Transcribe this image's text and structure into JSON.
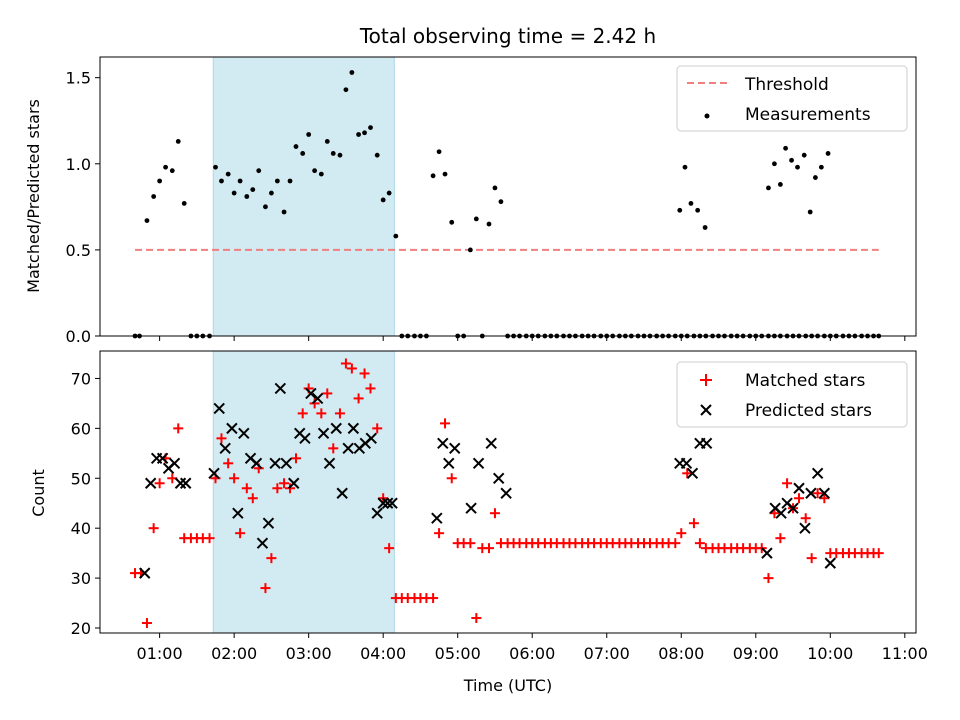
{
  "figure": {
    "title": "Total observing time = 2.42 h",
    "xlabel": "Time (UTC)",
    "xticks": [
      "01:00",
      "02:00",
      "03:00",
      "04:00",
      "05:00",
      "06:00",
      "07:00",
      "08:00",
      "09:00",
      "10:00",
      "11:00"
    ],
    "xlim_hours": [
      0.2,
      11.15
    ],
    "shaded_span_hours": [
      1.72,
      4.15
    ],
    "shade_color": "#add8e6"
  },
  "chart_data": [
    {
      "type": "scatter",
      "ylabel": "Matched/Predicted stars",
      "ylim": [
        0,
        1.62
      ],
      "yticks": [
        "0.0",
        "0.5",
        "1.0",
        "1.5"
      ],
      "legend_position": "upper right",
      "legend": [
        "Threshold",
        "Measurements"
      ],
      "threshold": {
        "name": "Threshold",
        "value": 0.5,
        "x_range": [
          0.67,
          10.65
        ],
        "color": "#f08080",
        "style": "dashed"
      },
      "series": [
        {
          "name": "Measurements",
          "color": "#000000",
          "x": [
            0.67,
            0.73,
            0.83,
            0.92,
            1.0,
            1.08,
            1.17,
            1.25,
            1.33,
            1.42,
            1.5,
            1.58,
            1.67,
            1.75,
            1.83,
            1.92,
            2.0,
            2.08,
            2.17,
            2.25,
            2.33,
            2.42,
            2.5,
            2.58,
            2.67,
            2.75,
            2.83,
            2.92,
            3.0,
            3.08,
            3.17,
            3.25,
            3.33,
            3.42,
            3.5,
            3.58,
            3.67,
            3.75,
            3.83,
            3.92,
            4.0,
            4.08,
            4.17,
            4.25,
            4.33,
            4.42,
            4.5,
            4.58,
            4.67,
            4.75,
            4.83,
            4.92,
            5.0,
            5.08,
            5.17,
            5.25,
            5.33,
            5.42,
            5.5,
            5.58,
            5.67,
            5.75,
            5.83,
            5.92,
            6.0,
            6.08,
            6.17,
            6.25,
            6.33,
            6.42,
            6.5,
            6.58,
            6.67,
            6.75,
            6.83,
            6.92,
            7.0,
            7.08,
            7.17,
            7.25,
            7.33,
            7.42,
            7.5,
            7.58,
            7.67,
            7.75,
            7.83,
            7.92,
            8.0,
            8.08,
            8.17,
            8.25,
            8.33,
            8.42,
            8.5,
            8.58,
            8.67,
            8.75,
            8.83,
            8.92,
            9.0,
            9.08,
            9.17,
            9.25,
            9.33,
            9.42,
            9.5,
            9.58,
            9.67,
            9.75,
            9.83,
            9.92,
            10.0,
            10.08,
            10.17,
            10.25,
            10.33,
            10.42,
            10.5,
            10.58,
            10.65
          ],
          "y": [
            0.0,
            0.0,
            0.67,
            0.81,
            0.9,
            0.98,
            0.96,
            1.13,
            0.77,
            0.0,
            0.0,
            0.0,
            0.0,
            0.98,
            0.9,
            0.94,
            0.83,
            0.9,
            0.81,
            0.85,
            0.96,
            0.75,
            0.83,
            0.9,
            0.72,
            0.9,
            1.1,
            1.06,
            1.17,
            0.96,
            0.94,
            1.13,
            1.06,
            1.05,
            1.43,
            1.53,
            1.17,
            1.18,
            1.21,
            1.05,
            0.79,
            0.83,
            0.58,
            0.0,
            0.0,
            0.0,
            0.0,
            0.0,
            0.93,
            1.07,
            0.94,
            0.66,
            0.0,
            0.0,
            0.5,
            0.68,
            0.0,
            0.65,
            0.86,
            0.78,
            0.0,
            0.0,
            0.0,
            0.0,
            0.0,
            0.0,
            0.0,
            0.0,
            0.0,
            0.0,
            0.0,
            0.0,
            0.0,
            0.0,
            0.0,
            0.0,
            0.0,
            0.0,
            0.0,
            0.0,
            0.0,
            0.0,
            0.0,
            0.0,
            0.0,
            0.0,
            0.0,
            0.0,
            0.0,
            0.0,
            0.0,
            0.0,
            0.0,
            0.0,
            0.0,
            0.0,
            0.0,
            0.0,
            0.0,
            0.0,
            0.0,
            0.0,
            0.0,
            0.0,
            0.0,
            0.0,
            0.0,
            0.0,
            0.0,
            0.0,
            0.0,
            0.0,
            0.0,
            0.0,
            0.0,
            0.0,
            0.0,
            0.0,
            0.0,
            0.0,
            0.0
          ]
        }
      ],
      "extra_measurements": {
        "x": [
          7.98,
          8.05,
          8.13,
          8.22,
          8.32,
          9.17,
          9.25,
          9.33,
          9.4,
          9.48,
          9.56,
          9.65,
          9.73,
          9.8,
          9.88,
          9.97
        ],
        "y": [
          0.73,
          0.98,
          0.77,
          0.73,
          0.63,
          0.86,
          1.0,
          0.88,
          1.09,
          1.02,
          0.98,
          1.05,
          0.72,
          0.92,
          0.98,
          1.06
        ]
      }
    },
    {
      "type": "scatter",
      "ylabel": "Count",
      "ylim": [
        19,
        75.5
      ],
      "yticks": [
        "20",
        "30",
        "40",
        "50",
        "60",
        "70"
      ],
      "legend_position": "upper right",
      "legend": [
        "Matched stars",
        "Predicted stars"
      ],
      "series": [
        {
          "name": "Matched stars",
          "color": "#ff0000",
          "marker": "+",
          "x": [
            0.67,
            0.75,
            0.83,
            0.92,
            1.0,
            1.08,
            1.17,
            1.25,
            1.33,
            1.42,
            1.5,
            1.58,
            1.67,
            1.75,
            1.83,
            1.92,
            2.0,
            2.08,
            2.17,
            2.25,
            2.33,
            2.42,
            2.5,
            2.58,
            2.67,
            2.75,
            2.83,
            2.92,
            3.0,
            3.08,
            3.17,
            3.25,
            3.33,
            3.42,
            3.5,
            3.58,
            3.67,
            3.75,
            3.83,
            3.92,
            4.0,
            4.08,
            4.17,
            4.25,
            4.33,
            4.42,
            4.5,
            4.58,
            4.67,
            4.75,
            4.83,
            4.92,
            5.0,
            5.08,
            5.17,
            5.25,
            5.33,
            5.42,
            5.5,
            5.58,
            5.67,
            5.75,
            5.83,
            5.92,
            6.0,
            6.08,
            6.17,
            6.25,
            6.33,
            6.42,
            6.5,
            6.58,
            6.67,
            6.75,
            6.83,
            6.92,
            7.0,
            7.08,
            7.17,
            7.25,
            7.33,
            7.42,
            7.5,
            7.58,
            7.67,
            7.75,
            7.83,
            7.92,
            8.0,
            8.08,
            8.17,
            8.25,
            8.33,
            8.42,
            8.5,
            8.58,
            8.67,
            8.75,
            8.83,
            8.92,
            9.0,
            9.08,
            9.17,
            9.25,
            9.33,
            9.42,
            9.5,
            9.58,
            9.67,
            9.75,
            9.83,
            9.92,
            10.0,
            10.08,
            10.17,
            10.25,
            10.33,
            10.42,
            10.5,
            10.58,
            10.65
          ],
          "y": [
            31,
            31,
            21,
            40,
            49,
            54,
            50,
            60,
            38,
            38,
            38,
            38,
            38,
            50,
            58,
            53,
            50,
            39,
            48,
            46,
            52,
            28,
            34,
            48,
            49,
            48,
            54,
            63,
            68,
            65,
            63,
            67,
            56,
            63,
            73,
            72,
            66,
            71,
            68,
            60,
            46,
            36,
            26,
            26,
            26,
            26,
            26,
            26,
            26,
            39,
            61,
            50,
            37,
            37,
            37,
            22,
            36,
            36,
            43,
            37,
            37,
            37,
            37,
            37,
            37,
            37,
            37,
            37,
            37,
            37,
            37,
            37,
            37,
            37,
            37,
            37,
            37,
            37,
            37,
            37,
            37,
            37,
            37,
            37,
            37,
            37,
            37,
            37,
            39,
            51,
            41,
            37,
            36,
            36,
            36,
            36,
            36,
            36,
            36,
            36,
            36,
            36,
            30,
            43,
            38,
            49,
            44,
            46,
            42,
            34,
            47,
            46,
            35,
            35,
            35,
            35,
            35,
            35,
            35,
            35,
            35
          ]
        },
        {
          "name": "Predicted stars",
          "color": "#000000",
          "marker": "x",
          "x": [
            0.8,
            0.88,
            0.96,
            1.04,
            1.12,
            1.2,
            1.28,
            1.35,
            1.73,
            1.8,
            1.88,
            1.97,
            2.05,
            2.13,
            2.22,
            2.3,
            2.38,
            2.46,
            2.55,
            2.62,
            2.7,
            2.8,
            2.88,
            2.95,
            3.03,
            3.12,
            3.2,
            3.28,
            3.37,
            3.45,
            3.53,
            3.6,
            3.68,
            3.76,
            3.84,
            3.92,
            4.0,
            4.06,
            4.12,
            4.72,
            4.8,
            4.88,
            4.96,
            5.18,
            5.28,
            5.45,
            5.55,
            5.65,
            7.98,
            8.07,
            8.15,
            8.25,
            8.34,
            9.15,
            9.26,
            9.34,
            9.42,
            9.5,
            9.58,
            9.66,
            9.74,
            9.83,
            9.92,
            10.0
          ],
          "y": [
            31,
            49,
            54,
            54,
            52,
            53,
            49,
            49,
            51,
            64,
            56,
            60,
            43,
            59,
            54,
            53,
            37,
            41,
            53,
            68,
            53,
            49,
            59,
            58,
            67,
            66,
            59,
            53,
            60,
            47,
            56,
            60,
            56,
            57,
            58,
            43,
            45,
            45,
            45,
            42,
            57,
            53,
            56,
            44,
            53,
            57,
            50,
            47,
            53,
            53,
            51,
            57,
            57,
            35,
            44,
            43,
            45,
            44,
            48,
            40,
            47,
            51,
            47,
            33
          ]
        }
      ]
    }
  ]
}
